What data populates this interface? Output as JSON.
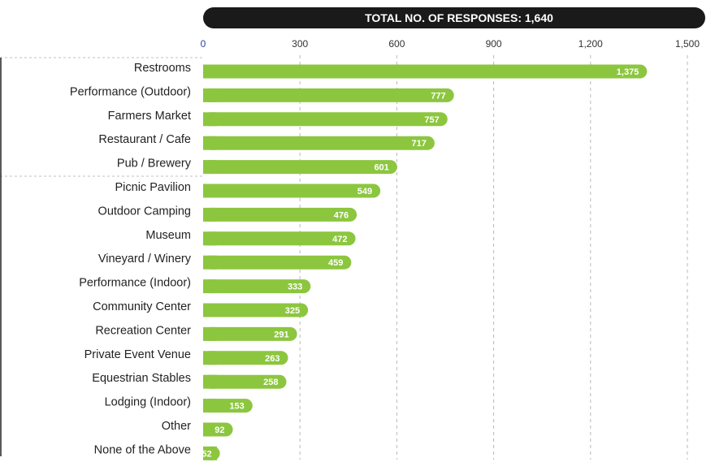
{
  "chart_data": {
    "type": "bar",
    "orientation": "horizontal",
    "title": "TOTAL NO. OF RESPONSES: 1,640",
    "xlim": [
      0,
      1500
    ],
    "ticks": [
      {
        "value": 0,
        "label": "0"
      },
      {
        "value": 300,
        "label": "300"
      },
      {
        "value": 600,
        "label": "600"
      },
      {
        "value": 900,
        "label": "900"
      },
      {
        "value": 1200,
        "label": "1,200"
      },
      {
        "value": 1500,
        "label": "1,500"
      }
    ],
    "grid": true,
    "bar_color": "#8cc63f",
    "banner_color": "#1a1a1a",
    "categories": [
      "Restrooms",
      "Performance (Outdoor)",
      "Farmers Market",
      "Restaurant / Cafe",
      "Pub / Brewery",
      "Picnic Pavilion",
      "Outdoor Camping",
      "Museum",
      "Vineyard / Winery",
      "Performance (Indoor)",
      "Community Center",
      "Recreation Center",
      "Private Event Venue",
      "Equestrian Stables",
      "Lodging (Indoor)",
      "Other",
      "None of the Above"
    ],
    "values": [
      1375,
      777,
      757,
      717,
      601,
      549,
      476,
      472,
      459,
      333,
      325,
      291,
      263,
      258,
      153,
      92,
      52
    ],
    "value_labels": [
      "1,375",
      "777",
      "757",
      "717",
      "601",
      "549",
      "476",
      "472",
      "459",
      "333",
      "325",
      "291",
      "263",
      "258",
      "153",
      "92",
      "52"
    ]
  }
}
